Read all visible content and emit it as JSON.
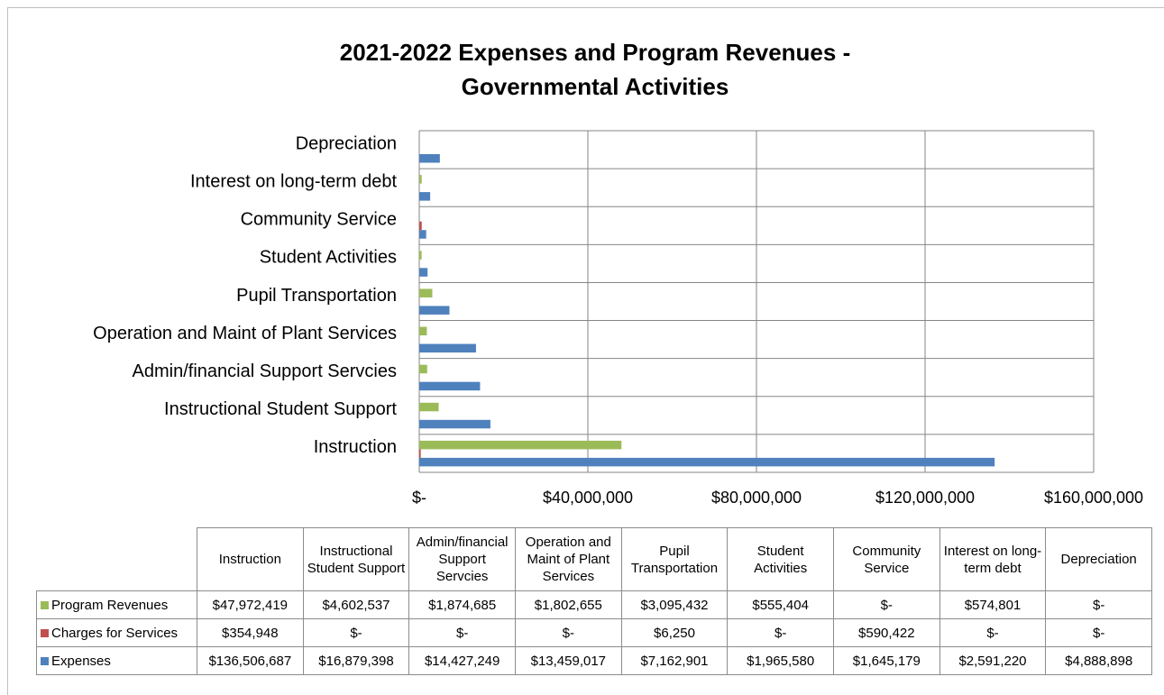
{
  "chart_data": {
    "type": "hbar",
    "title": "2021-2022 Expenses and Program Revenues  -",
    "subtitle": "Governmental Activities",
    "categories": [
      "Instruction",
      "Instructional Student Support",
      "Admin/financial Support Servcies",
      "Operation and Maint of Plant Services",
      "Pupil Transportation",
      "Student Activities",
      "Community Service",
      "Interest on long-term debt",
      "Depreciation"
    ],
    "series": [
      {
        "name": "Program Revenues",
        "color": "#9bbb59",
        "values": [
          47972419,
          4602537,
          1874685,
          1802655,
          3095432,
          555404,
          0,
          574801,
          0
        ],
        "value_labels": [
          "$47,972,419",
          "$4,602,537",
          "$1,874,685",
          "$1,802,655",
          "$3,095,432",
          "$555,404",
          "$-",
          "$574,801",
          "$-"
        ]
      },
      {
        "name": "Charges for Services",
        "color": "#c0504d",
        "values": [
          354948,
          0,
          0,
          0,
          6250,
          0,
          590422,
          0,
          0
        ],
        "value_labels": [
          "$354,948",
          "$-",
          "$-",
          "$-",
          "$6,250",
          "$-",
          "$590,422",
          "$-",
          "$-"
        ]
      },
      {
        "name": "Expenses",
        "color": "#4f81bd",
        "values": [
          136506687,
          16879398,
          14427249,
          13459017,
          7162901,
          1965580,
          1645179,
          2591220,
          4888898
        ],
        "value_labels": [
          "$136,506,687",
          "$16,879,398",
          "$14,427,249",
          "$13,459,017",
          "$7,162,901",
          "$1,965,580",
          "$1,645,179",
          "$2,591,220",
          "$4,888,898"
        ]
      }
    ],
    "xlim": [
      0,
      160000000
    ],
    "xticks": [
      {
        "value": 0,
        "label": "$-"
      },
      {
        "value": 40000000,
        "label": "$40,000,000"
      },
      {
        "value": 80000000,
        "label": "$80,000,000"
      },
      {
        "value": 120000000,
        "label": "$120,000,000"
      },
      {
        "value": 160000000,
        "label": "$160,000,000"
      }
    ],
    "grid": true
  }
}
